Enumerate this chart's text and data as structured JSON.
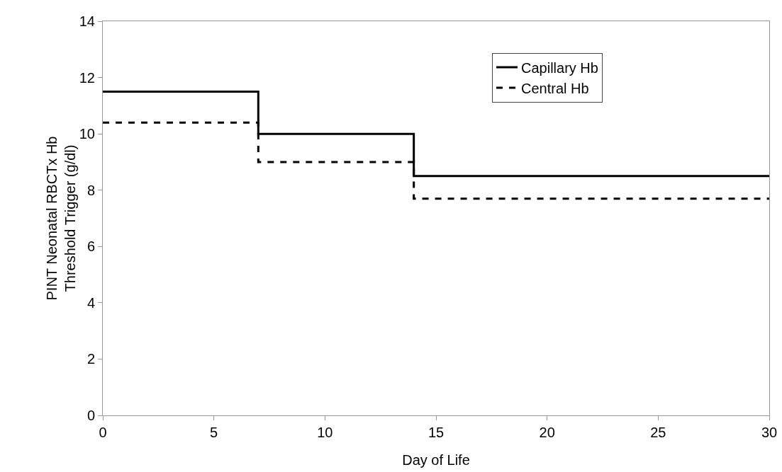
{
  "chart_data": {
    "type": "step",
    "xlabel": "Day of Life",
    "ylabel": "PINT Neonatal RBCTx Hb\nThreshold Trigger (g/dl)",
    "x": [
      0,
      7,
      14,
      30
    ],
    "series": [
      {
        "name": "Capillary Hb",
        "color": "#000000",
        "line_style": "solid",
        "values": [
          11.5,
          10,
          8.5,
          8.5
        ]
      },
      {
        "name": "Central Hb",
        "color": "#000000",
        "line_style": "dashed",
        "values": [
          10.4,
          9,
          7.7,
          7.7
        ]
      }
    ],
    "xlim": [
      0,
      30
    ],
    "xticks": [
      0,
      5,
      10,
      15,
      20,
      25,
      30
    ],
    "ylim": [
      0,
      14
    ],
    "yticks": [
      0,
      2,
      4,
      6,
      8,
      10,
      12,
      14
    ],
    "grid": false,
    "legend": "top right",
    "marker": "none"
  }
}
